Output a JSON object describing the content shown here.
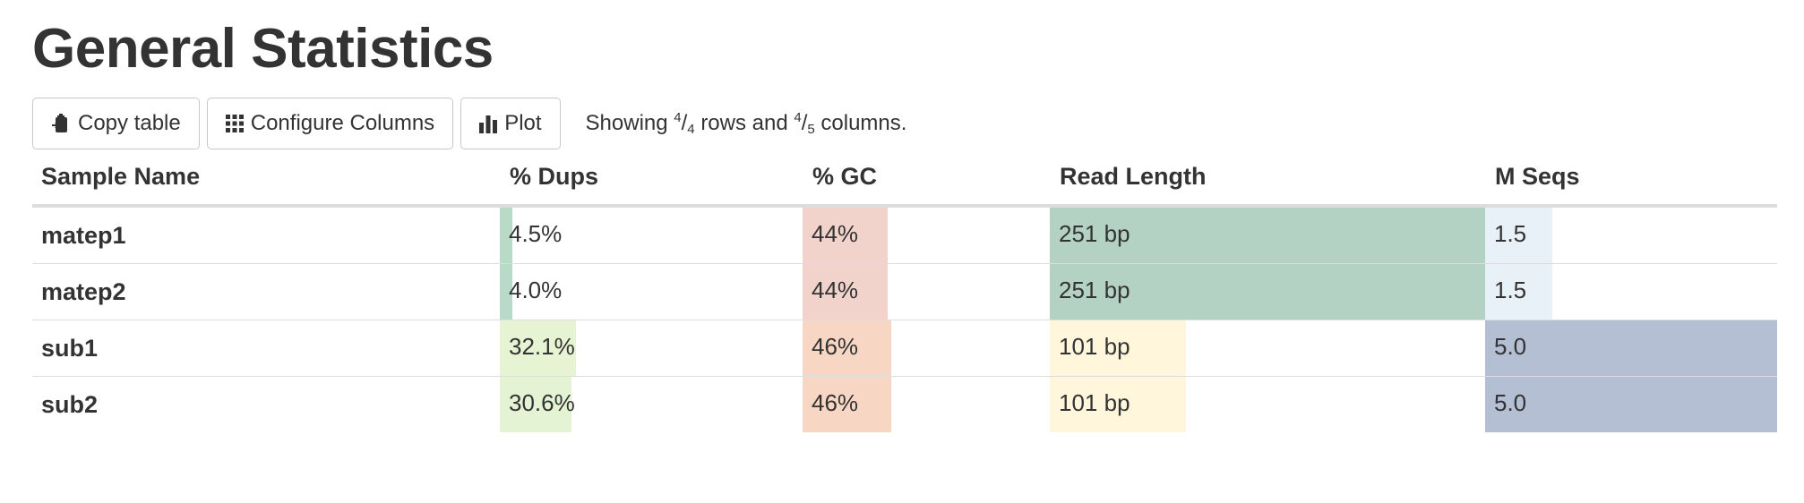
{
  "title": "General Statistics",
  "toolbar": {
    "copy_label": "Copy table",
    "configure_label": "Configure Columns",
    "plot_label": "Plot",
    "status": {
      "prefix": "Showing",
      "rows_shown": "4",
      "rows_total": "4",
      "rows_word": "rows and",
      "cols_shown": "4",
      "cols_total": "5",
      "cols_word": "columns."
    }
  },
  "columns": [
    "Sample Name",
    "% Dups",
    "% GC",
    "Read Length",
    "M Seqs"
  ],
  "rows": [
    {
      "name": "matep1",
      "dups": "4.5%",
      "gc": "44%",
      "read_length": "251 bp",
      "mseqs": "1.5",
      "dups_level": 0.14,
      "gc_level": 0.44,
      "read_length_level": 1.0,
      "mseqs_level": 0.3
    },
    {
      "name": "matep2",
      "dups": "4.0%",
      "gc": "44%",
      "read_length": "251 bp",
      "mseqs": "1.5",
      "dups_level": 0.12,
      "gc_level": 0.44,
      "read_length_level": 1.0,
      "mseqs_level": 0.3
    },
    {
      "name": "sub1",
      "dups": "32.1%",
      "gc": "46%",
      "read_length": "101 bp",
      "mseqs": "5.0",
      "dups_level": 1.0,
      "gc_level": 0.46,
      "read_length_level": 0.4,
      "mseqs_level": 1.0
    },
    {
      "name": "sub2",
      "dups": "30.6%",
      "gc": "46%",
      "read_length": "101 bp",
      "mseqs": "5.0",
      "dups_level": 0.95,
      "gc_level": 0.46,
      "read_length_level": 0.4,
      "mseqs_level": 1.0
    }
  ],
  "colors": {
    "dups_low": "#b3d6c6",
    "dups_high": "#e6f4d4",
    "gc_low": "#f2d3cc",
    "gc_high": "#f8d6c4",
    "read_length_high": "#b4d2c4",
    "read_length_low": "#fff6dc",
    "mseqs_low": "#e8f0f8",
    "mseqs_high": "#b4bfd4"
  }
}
